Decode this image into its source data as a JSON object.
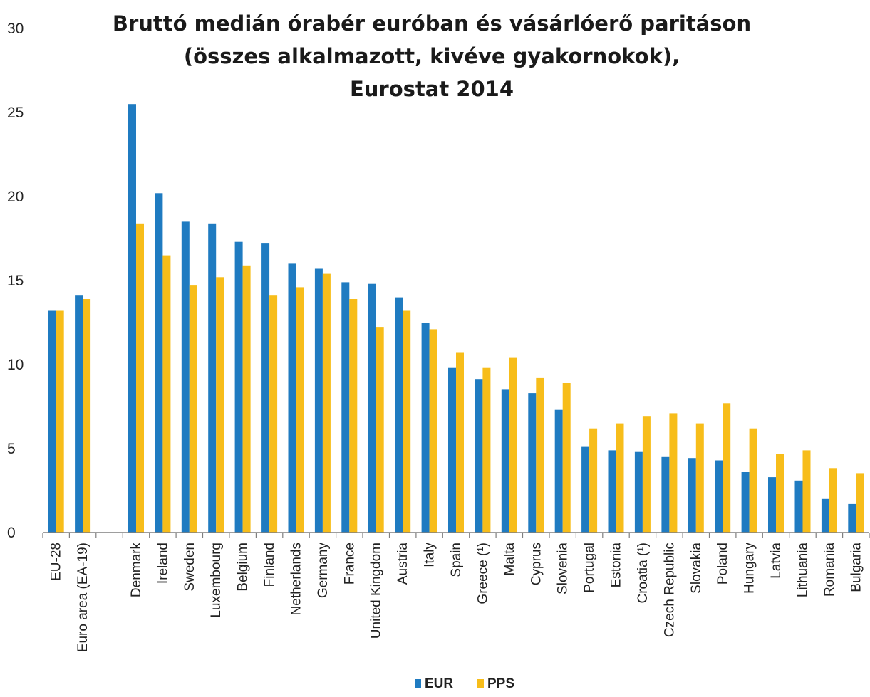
{
  "chart_data": {
    "type": "bar",
    "title_lines": [
      "Bruttó medián órabér euróban és vásárlóerő paritáson",
      "(összes alkalmazott, kivéve gyakornokok),",
      "Eurostat 2014"
    ],
    "ylim": [
      0,
      30
    ],
    "y_ticks": [
      "0",
      "5",
      "10",
      "15",
      "20",
      "25",
      "30"
    ],
    "grid": false,
    "legend_position": "bottom-center",
    "categories": [
      "EU-28",
      "Euro area (EA-19)",
      "",
      "Denmark",
      "Ireland",
      "Sweden",
      "Luxembourg",
      "Belgium",
      "Finland",
      "Netherlands",
      "Germany",
      "France",
      "United Kingdom",
      "Austria",
      "Italy",
      "Spain",
      "Greece (¹)",
      "Malta",
      "Cyprus",
      "Slovenia",
      "Portugal",
      "Estonia",
      "Croatia (¹)",
      "Czech Republic",
      "Slovakia",
      "Poland",
      "Hungary",
      "Latvia",
      "Lithuania",
      "Romania",
      "Bulgaria"
    ],
    "series": [
      {
        "name": "EUR",
        "color": "#1f7bc1",
        "values": [
          13.2,
          14.1,
          null,
          25.5,
          20.2,
          18.5,
          18.4,
          17.3,
          17.2,
          16.0,
          15.7,
          14.9,
          14.8,
          14.0,
          12.5,
          9.8,
          9.1,
          8.5,
          8.3,
          7.3,
          5.1,
          4.9,
          4.8,
          4.5,
          4.4,
          4.3,
          3.6,
          3.3,
          3.1,
          2.0,
          1.7
        ]
      },
      {
        "name": "PPS",
        "color": "#f7bd1a",
        "values": [
          13.2,
          13.9,
          null,
          18.4,
          16.5,
          14.7,
          15.2,
          15.9,
          14.1,
          14.6,
          15.4,
          13.9,
          12.2,
          13.2,
          12.1,
          10.7,
          9.8,
          10.4,
          9.2,
          8.9,
          6.2,
          6.5,
          6.9,
          7.1,
          6.5,
          7.7,
          6.2,
          4.7,
          4.9,
          3.8,
          3.5
        ]
      }
    ]
  }
}
